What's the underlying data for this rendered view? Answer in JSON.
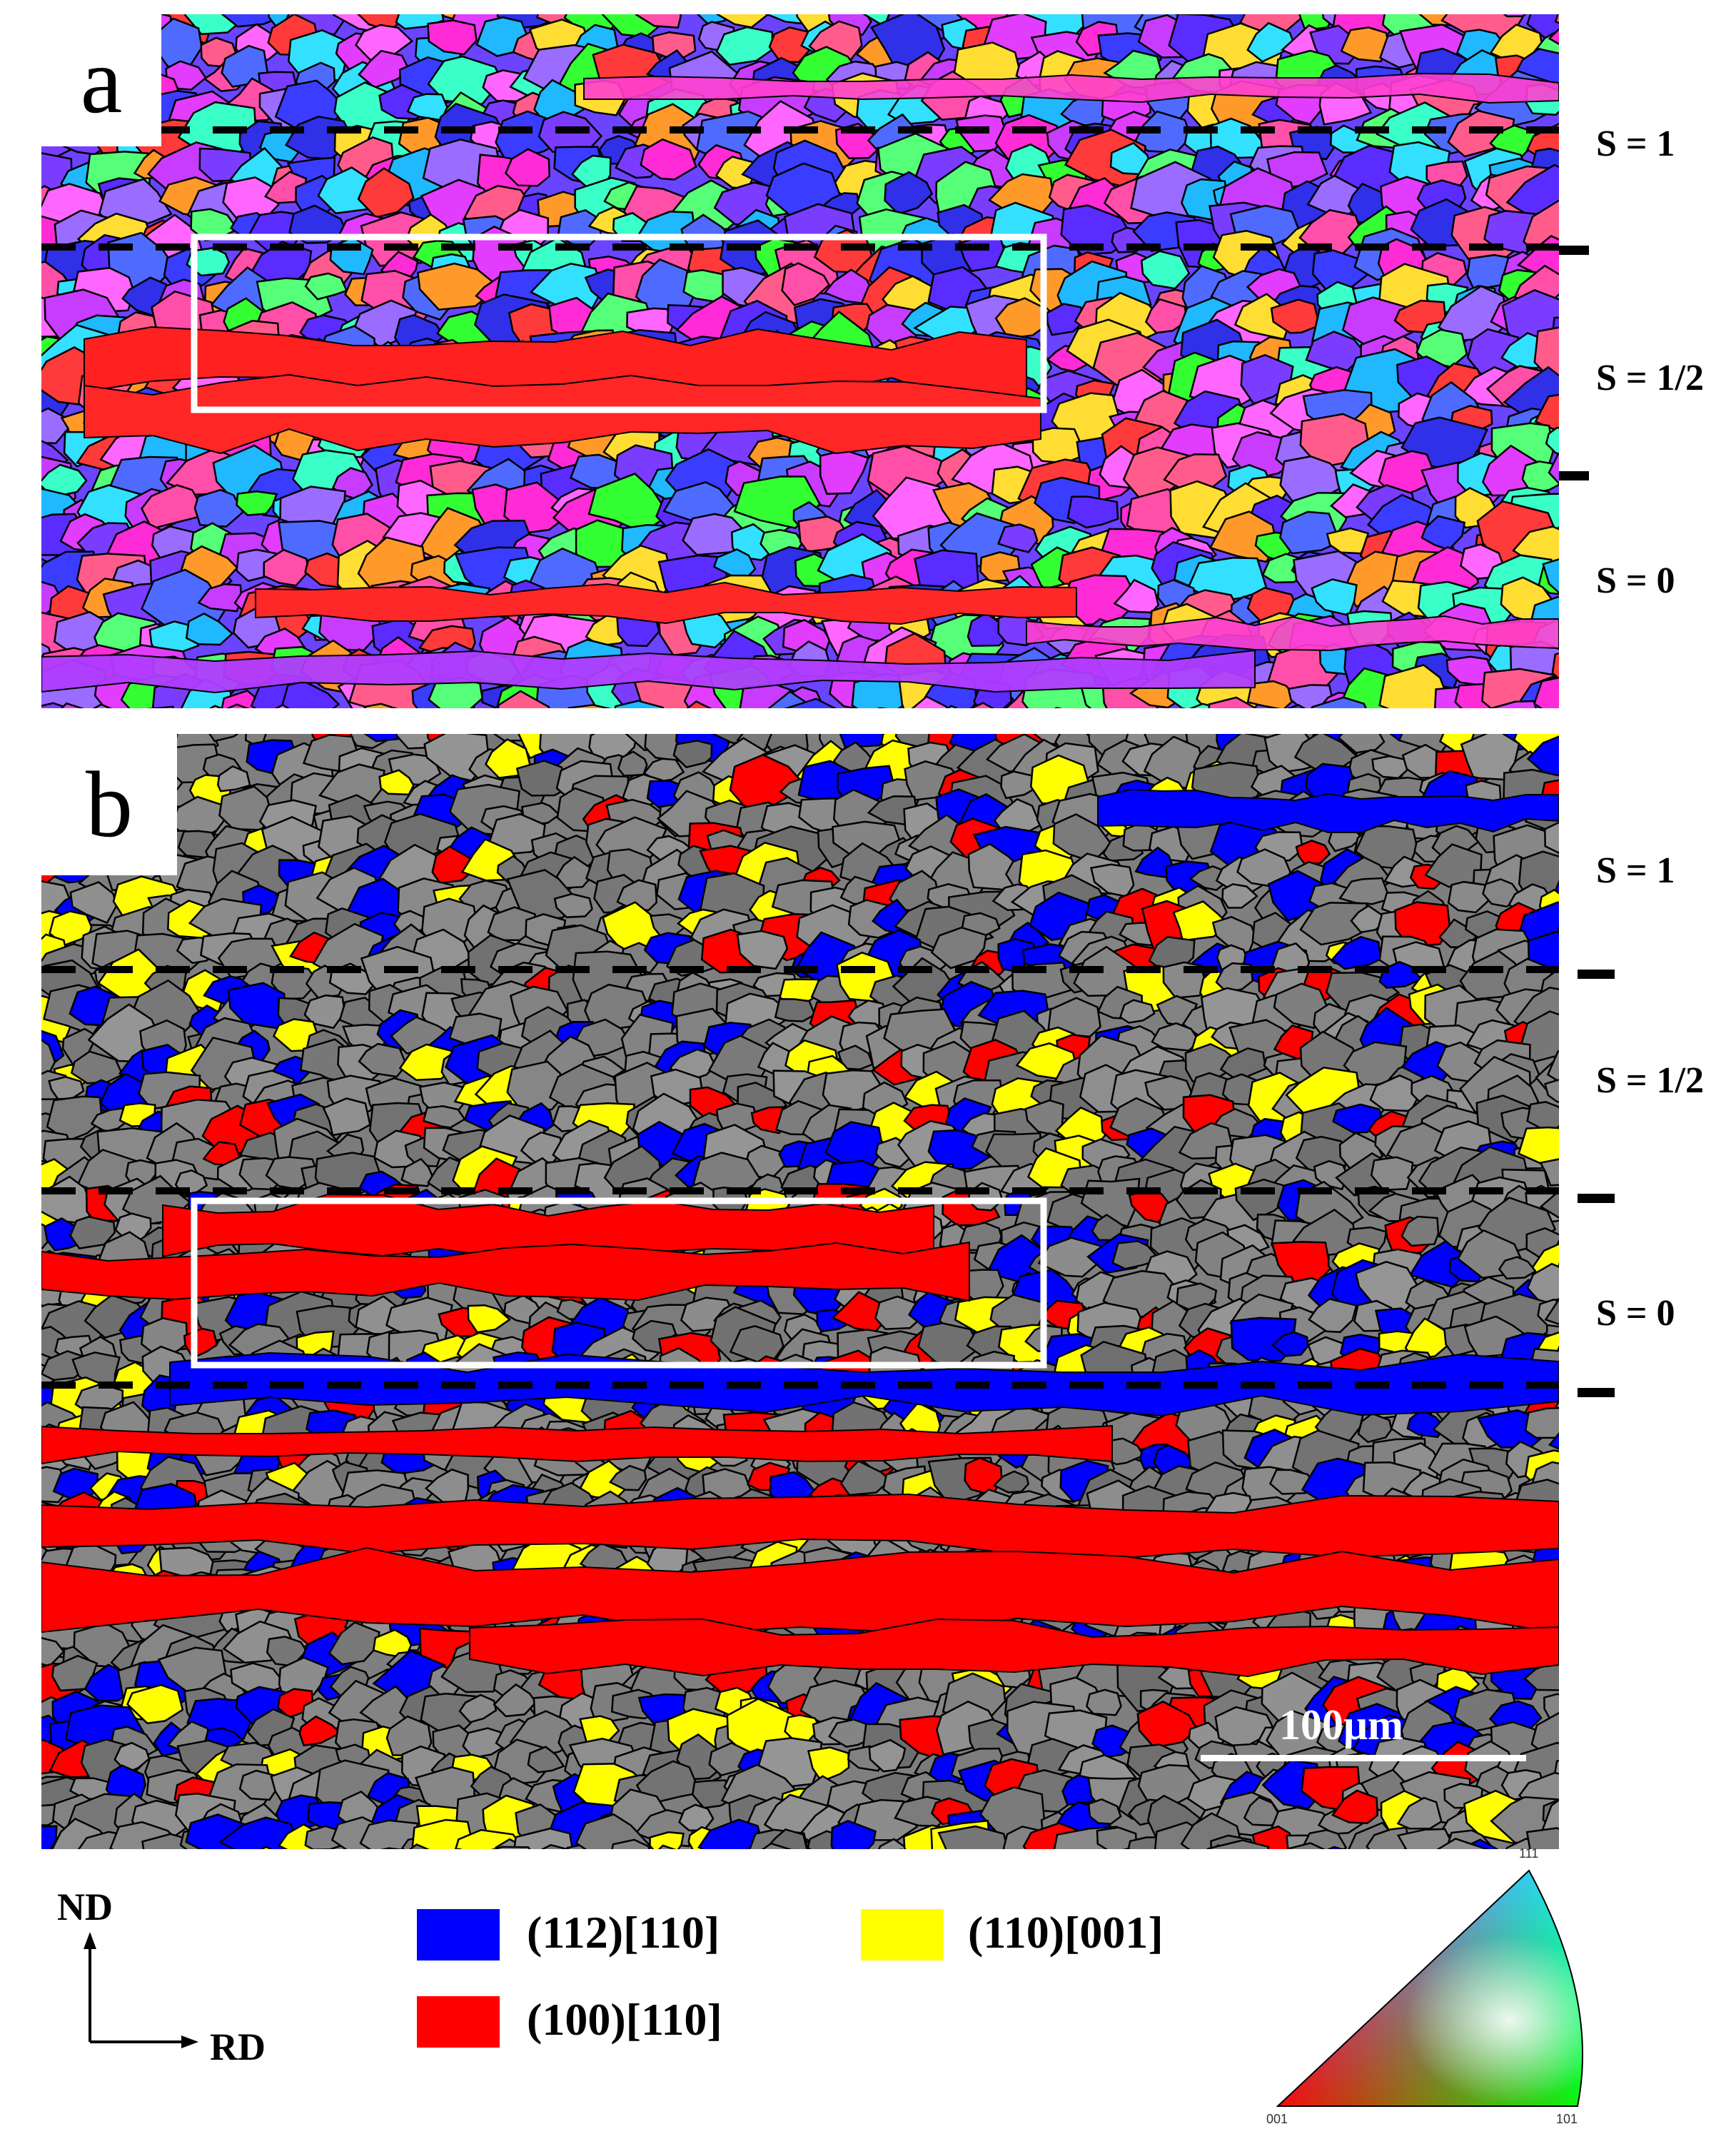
{
  "panels": [
    {
      "letter": "a",
      "type": "ipf-map"
    },
    {
      "letter": "b",
      "type": "texture-component-map"
    }
  ],
  "s_labels": {
    "a": [
      "S = 1",
      "S = 1/2",
      "S = 0"
    ],
    "b": [
      "S = 1",
      "S = 1/2",
      "S = 0"
    ]
  },
  "scale_bar": {
    "label": "100μm"
  },
  "axes": {
    "vertical": "ND",
    "horizontal": "RD"
  },
  "legend": [
    {
      "label": "(112)[110]",
      "color": "#0000ff"
    },
    {
      "label": "(110)[001]",
      "color": "#ffff00"
    },
    {
      "label": "(100)[110]",
      "color": "#ff0000"
    }
  ],
  "ipf_triangle": {
    "labels": [
      "001",
      "101",
      "111"
    ]
  },
  "colors": {
    "grain_boundary": "#000000",
    "unclassified_grain": "#7f7f7f",
    "highlight_box": "#ffffff"
  }
}
